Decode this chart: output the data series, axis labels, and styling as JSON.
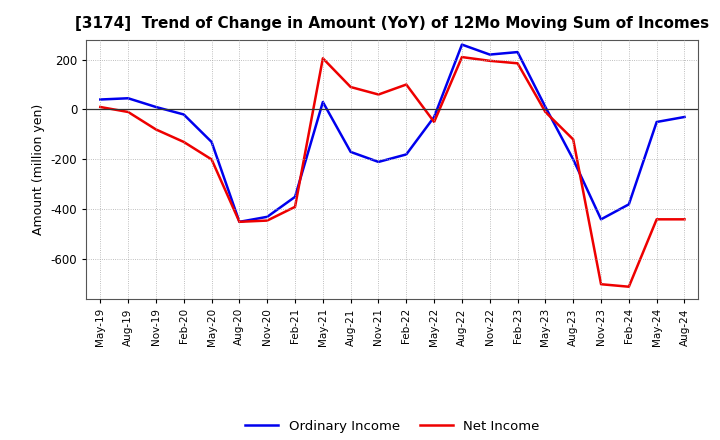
{
  "title": "[3174]  Trend of Change in Amount (YoY) of 12Mo Moving Sum of Incomes",
  "ylabel": "Amount (million yen)",
  "x_labels": [
    "May-19",
    "Aug-19",
    "Nov-19",
    "Feb-20",
    "May-20",
    "Aug-20",
    "Nov-20",
    "Feb-21",
    "May-21",
    "Aug-21",
    "Nov-21",
    "Feb-22",
    "May-22",
    "Aug-22",
    "Nov-22",
    "Feb-23",
    "May-23",
    "Aug-23",
    "Nov-23",
    "Feb-24",
    "May-24",
    "Aug-24"
  ],
  "ordinary_income": [
    40,
    45,
    10,
    -20,
    -130,
    -450,
    -430,
    -350,
    30,
    -170,
    -210,
    -180,
    -30,
    260,
    220,
    230,
    10,
    -200,
    -440,
    -380,
    -50,
    -30
  ],
  "net_income": [
    10,
    -10,
    -80,
    -130,
    -200,
    -450,
    -445,
    -390,
    205,
    90,
    60,
    100,
    -50,
    210,
    195,
    185,
    -10,
    -120,
    -700,
    -710,
    -440,
    -440
  ],
  "ordinary_color": "#0000EE",
  "net_color": "#EE0000",
  "ylim": [
    -760,
    280
  ],
  "yticks": [
    200,
    0,
    -200,
    -400,
    -600
  ],
  "background_color": "#FFFFFF",
  "grid_color": "#AAAAAA",
  "legend_labels": [
    "Ordinary Income",
    "Net Income"
  ],
  "figsize": [
    7.2,
    4.4
  ],
  "dpi": 100
}
